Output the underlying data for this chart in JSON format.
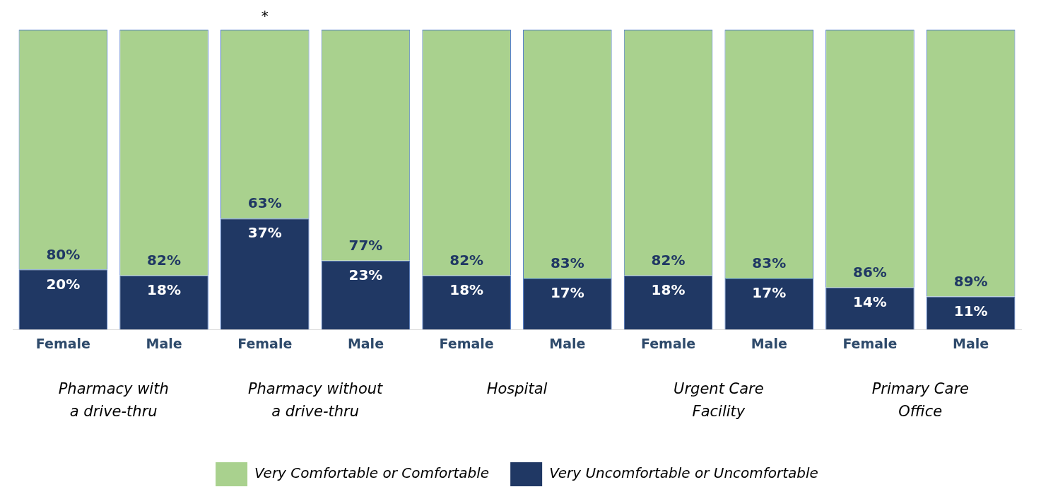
{
  "chart_data": {
    "type": "bar",
    "stacked": true,
    "categories": [
      "Female",
      "Male",
      "Female",
      "Male",
      "Female",
      "Male",
      "Female",
      "Male",
      "Female",
      "Male"
    ],
    "series": [
      {
        "name": "Very Uncomfortable or Uncomfortable",
        "color": "#203864",
        "values": [
          20,
          18,
          37,
          23,
          18,
          17,
          18,
          17,
          14,
          11
        ],
        "value_labels": [
          "20%",
          "18%",
          "37%",
          "23%",
          "18%",
          "17%",
          "18%",
          "17%",
          "14%",
          "11%"
        ]
      },
      {
        "name": "Very Comfortable or Comfortable",
        "color": "#a9d18e",
        "values": [
          80,
          82,
          63,
          77,
          82,
          83,
          82,
          83,
          86,
          89
        ],
        "value_labels": [
          "80%",
          "82%",
          "63%",
          "77%",
          "82%",
          "83%",
          "82%",
          "83%",
          "86%",
          "89%"
        ]
      }
    ],
    "ylim": [
      0,
      100
    ],
    "tick_labels": "x",
    "grid": false,
    "legend": "bottom",
    "annotations": [
      "Pharmacy with\na drive-thru",
      "Pharmacy without\na drive-thru",
      "Hospital",
      "Urgent Care\nFacility",
      "Primary Care\nOffice",
      "*"
    ]
  }
}
